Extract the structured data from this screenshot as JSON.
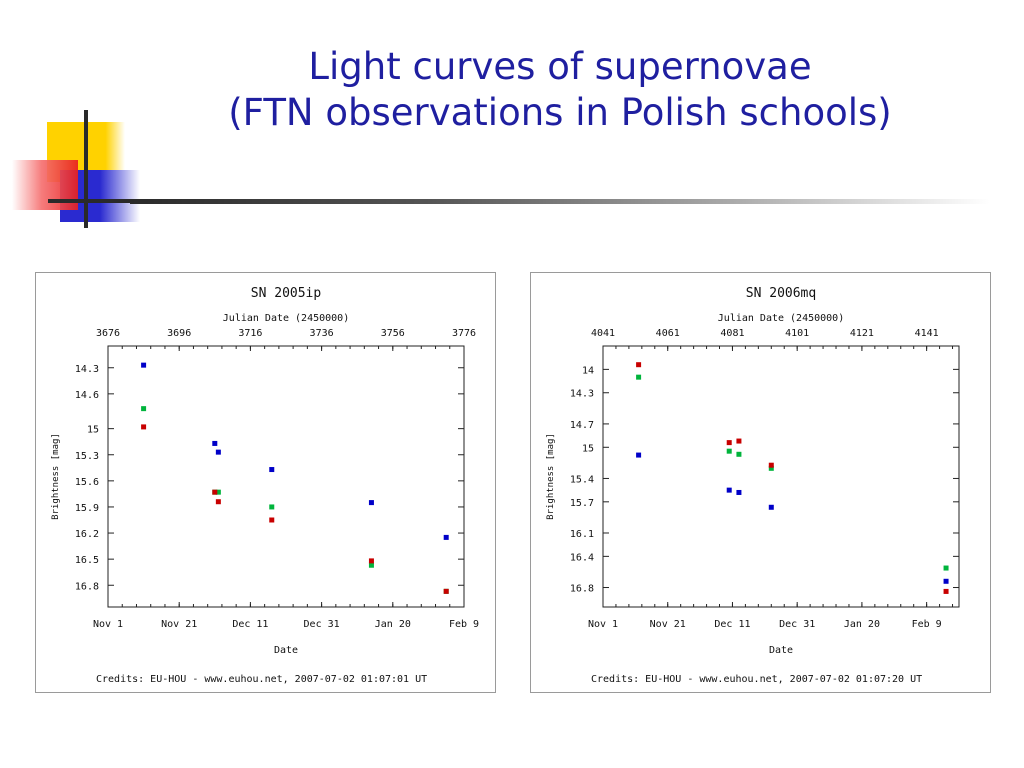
{
  "slide": {
    "title_line1": "Light curves of supernovae",
    "title_line2": "(FTN observations in Polish schools)",
    "logo_colors": {
      "yellow": "#ffd200",
      "red": "#f03a3a",
      "blue": "#2a2ad0"
    },
    "title_color": "#1f1fa0"
  },
  "chart_data": [
    {
      "type": "scatter",
      "title": "SN 2005ip",
      "xlabel": "Date",
      "x2label": "Julian Date (2450000)",
      "ylabel": "Brightness [mag]",
      "credits": "Credits: EU-HOU - www.euhou.net, 2007-07-02 01:07:01 UT",
      "xlim": [
        3676,
        3776
      ],
      "ylim": [
        14.05,
        17.05
      ],
      "y_inverted": true,
      "x_ticks_top": [
        3676,
        3696,
        3716,
        3736,
        3756,
        3776
      ],
      "x_ticklabels_top": [
        "3676",
        "3696",
        "3716",
        "3736",
        "3756",
        "3776"
      ],
      "x_ticks_bottom": [
        3676,
        3696,
        3716,
        3736,
        3756,
        3776
      ],
      "x_ticklabels_bottom": [
        "Nov 1",
        "Nov 21",
        "Dec 11",
        "Dec 31",
        "Jan 20",
        "Feb 9"
      ],
      "y_ticks": [
        14.3,
        14.6,
        15,
        15.3,
        15.6,
        15.9,
        16.2,
        16.5,
        16.8
      ],
      "y_ticklabels": [
        "14.3",
        "14.6",
        "15",
        "15.3",
        "15.6",
        "15.9",
        "16.2",
        "16.5",
        "16.8"
      ],
      "grid": false,
      "series": [
        {
          "color": "#0000c8",
          "x": [
            3686,
            3706,
            3707,
            3722,
            3750,
            3771
          ],
          "y": [
            14.27,
            15.17,
            15.27,
            15.47,
            15.85,
            16.25
          ]
        },
        {
          "color": "#00b43c",
          "x": [
            3686,
            3706,
            3707,
            3722,
            3750,
            3771
          ],
          "y": [
            14.77,
            15.73,
            15.73,
            15.9,
            16.57,
            16.87
          ]
        },
        {
          "color": "#c80000",
          "x": [
            3686,
            3706,
            3707,
            3722,
            3750,
            3771
          ],
          "y": [
            14.98,
            15.73,
            15.84,
            16.05,
            16.52,
            16.87
          ]
        }
      ]
    },
    {
      "type": "scatter",
      "title": "SN 2006mq",
      "xlabel": "Date",
      "x2label": "Julian Date (2450000)",
      "ylabel": "Brightness [mag]",
      "credits": "Credits: EU-HOU - www.euhou.net, 2007-07-02 01:07:20 UT",
      "xlim": [
        4041,
        4151
      ],
      "ylim": [
        13.7,
        17.05
      ],
      "y_inverted": true,
      "x_ticks_top": [
        4041,
        4061,
        4081,
        4101,
        4121,
        4141
      ],
      "x_ticklabels_top": [
        "4041",
        "4061",
        "4081",
        "4101",
        "4121",
        "4141"
      ],
      "x_ticks_bottom": [
        4041,
        4061,
        4081,
        4101,
        4121,
        4141
      ],
      "x_ticklabels_bottom": [
        "Nov 1",
        "Nov 21",
        "Dec 11",
        "Dec 31",
        "Jan 20",
        "Feb 9"
      ],
      "y_ticks": [
        14,
        14.3,
        14.7,
        15,
        15.4,
        15.7,
        16.1,
        16.4,
        16.8
      ],
      "y_ticklabels": [
        "14",
        "14.3",
        "14.7",
        "15",
        "15.4",
        "15.7",
        "16.1",
        "16.4",
        "16.8"
      ],
      "grid": false,
      "series": [
        {
          "color": "#0000c8",
          "x": [
            4052,
            4080,
            4083,
            4093,
            4147
          ],
          "y": [
            15.1,
            15.55,
            15.58,
            15.77,
            16.72
          ]
        },
        {
          "color": "#00b43c",
          "x": [
            4052,
            4080,
            4083,
            4093,
            4147
          ],
          "y": [
            14.1,
            15.05,
            15.09,
            15.27,
            16.55
          ]
        },
        {
          "color": "#c80000",
          "x": [
            4052,
            4080,
            4083,
            4093,
            4147
          ],
          "y": [
            13.94,
            14.94,
            14.92,
            15.23,
            16.85
          ]
        }
      ]
    }
  ]
}
